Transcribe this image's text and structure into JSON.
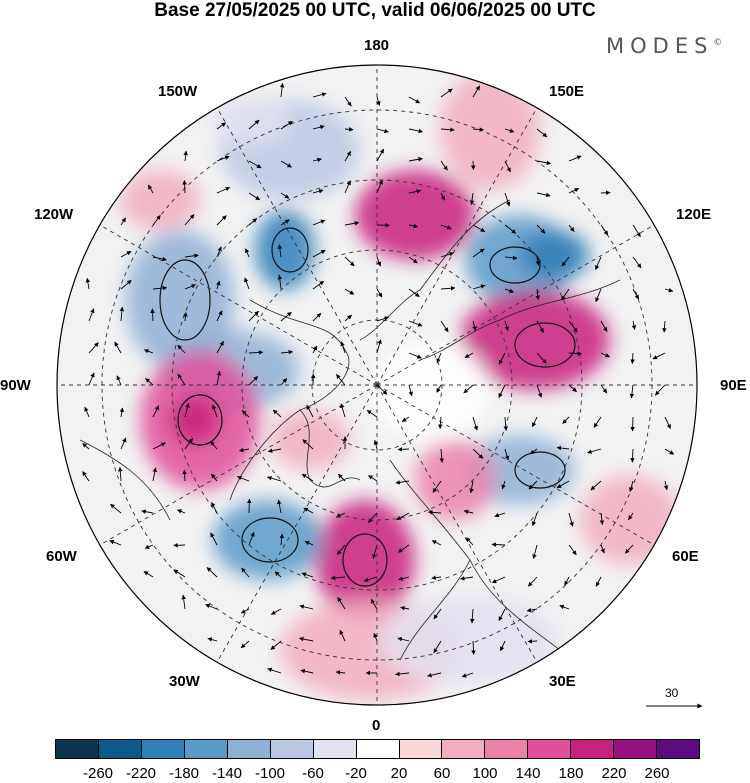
{
  "title": "Base 27/05/2025 00 UTC, valid 06/06/2025 00 UTC",
  "brand": {
    "name": "MODES",
    "mark": "©"
  },
  "longitude_labels": {
    "top": "180",
    "top_right": "150E",
    "right_upper": "120E",
    "right": "90E",
    "right_lower": "60E",
    "bottom_right": "30E",
    "bottom": "0",
    "bottom_left": "30W",
    "left_lower": "60W",
    "left": "90W",
    "left_upper": "120W",
    "top_left": "150W"
  },
  "vector_scale": {
    "value": "30"
  },
  "colorbar": {
    "colors": [
      "#0d3550",
      "#0b5a8a",
      "#2f7fb8",
      "#5a9ac8",
      "#8fb0d6",
      "#bcc8e4",
      "#e2e2f0",
      "#ffffff",
      "#f8d8d8",
      "#f2aec0",
      "#ec82aa",
      "#e0509a",
      "#c8207e",
      "#961080",
      "#5c0c80"
    ],
    "ticks": [
      "-260",
      "-220",
      "-180",
      "-140",
      "-100",
      "-60",
      "-20",
      "20",
      "60",
      "100",
      "140",
      "180",
      "220",
      "260"
    ]
  },
  "colors": {
    "ocean": "#f2f2f2",
    "grid": "#333333",
    "coast": "#222222"
  }
}
